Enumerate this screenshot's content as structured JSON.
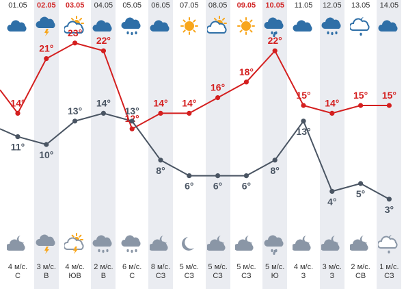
{
  "colors": {
    "stripe": "#eaecf1",
    "date_normal": "#333333",
    "date_weekend": "#d22a2a",
    "max_line": "#d41f1f",
    "min_line": "#4a5563",
    "icon_day": "#2f6fa7",
    "icon_night": "#8a96a6",
    "sun": "#f8a61c"
  },
  "days": [
    {
      "date": "01.05",
      "weekend": false,
      "icon_top": "cloud-icon",
      "icon_bottom": "cloud-night-icon",
      "max": "14°",
      "min": "11°",
      "wind_speed": "4 м/с.",
      "wind_dir": "С"
    },
    {
      "date": "02.05",
      "weekend": true,
      "icon_top": "thunderstorm-icon",
      "icon_bottom": "thunderstorm-icon",
      "max": "21°",
      "min": "10°",
      "wind_speed": "3 м/с.",
      "wind_dir": "В"
    },
    {
      "date": "03.05",
      "weekend": true,
      "icon_top": "partly-cloudy-icon",
      "icon_bottom": "partly-cloudy-thunder-icon",
      "max": "23°",
      "min": "13°",
      "wind_speed": "4 м/с.",
      "wind_dir": "ЮВ"
    },
    {
      "date": "04.05",
      "weekend": false,
      "icon_top": "cloud-icon",
      "icon_bottom": "rain-icon",
      "max": "22°",
      "min": "14°",
      "wind_speed": "2 м/с.",
      "wind_dir": "В"
    },
    {
      "date": "05.05",
      "weekend": false,
      "icon_top": "rain-icon",
      "icon_bottom": "rain-icon",
      "max": "12°",
      "min": "13°",
      "wind_speed": "6 м/с.",
      "wind_dir": "С"
    },
    {
      "date": "06.05",
      "weekend": false,
      "icon_top": "cloud-icon",
      "icon_bottom": "cloud-night-icon",
      "max": "14°",
      "min": "8°",
      "wind_speed": "8 м/с.",
      "wind_dir": "СЗ"
    },
    {
      "date": "07.05",
      "weekend": false,
      "icon_top": "sun-icon",
      "icon_bottom": "moon-icon",
      "max": "14°",
      "min": "6°",
      "wind_speed": "5 м/с.",
      "wind_dir": "СЗ"
    },
    {
      "date": "08.05",
      "weekend": false,
      "icon_top": "partly-cloudy-icon",
      "icon_bottom": "cloud-night-icon",
      "max": "16°",
      "min": "6°",
      "wind_speed": "5 м/с.",
      "wind_dir": "СЗ"
    },
    {
      "date": "09.05",
      "weekend": true,
      "icon_top": "sun-icon",
      "icon_bottom": "cloud-night-icon",
      "max": "18°",
      "min": "6°",
      "wind_speed": "5 м/с.",
      "wind_dir": "СЗ"
    },
    {
      "date": "10.05",
      "weekend": true,
      "icon_top": "drizzle-icon",
      "icon_bottom": "drizzle-icon",
      "max": "22°",
      "min": "8°",
      "wind_speed": "5 м/с.",
      "wind_dir": "Ю"
    },
    {
      "date": "11.05",
      "weekend": false,
      "icon_top": "cloud-icon",
      "icon_bottom": "cloud-night-icon",
      "max": "15°",
      "min": "13°",
      "wind_speed": "4 м/с.",
      "wind_dir": "З"
    },
    {
      "date": "12.05",
      "weekend": false,
      "icon_top": "rain-icon",
      "icon_bottom": "cloud-night-icon",
      "max": "14°",
      "min": "4°",
      "wind_speed": "3 м/с.",
      "wind_dir": "З"
    },
    {
      "date": "13.05",
      "weekend": false,
      "icon_top": "cloud-night-drizzle-icon",
      "icon_bottom": "cloud-night-icon",
      "max": "15°",
      "min": "5°",
      "wind_speed": "2 м/с.",
      "wind_dir": "СВ"
    },
    {
      "date": "14.05",
      "weekend": false,
      "icon_top": "cloud-icon",
      "icon_bottom": "drizzle-night-icon",
      "max": "15°",
      "min": "3°",
      "wind_speed": "1 м/с.",
      "wind_dir": "СЗ"
    }
  ],
  "chart_data": {
    "type": "line",
    "categories": [
      "01.05",
      "02.05",
      "03.05",
      "04.05",
      "05.05",
      "06.05",
      "07.05",
      "08.05",
      "09.05",
      "10.05",
      "11.05",
      "12.05",
      "13.05",
      "14.05"
    ],
    "series": [
      {
        "values": [
          14,
          21,
          23,
          22,
          12,
          14,
          14,
          16,
          18,
          22,
          15,
          14,
          15,
          15
        ]
      },
      {
        "values": [
          11,
          10,
          13,
          14,
          13,
          8,
          6,
          6,
          6,
          8,
          13,
          4,
          5,
          3
        ]
      }
    ],
    "leading_values": [
      17,
      12
    ],
    "title": "",
    "xlabel": "",
    "ylabel": ""
  }
}
